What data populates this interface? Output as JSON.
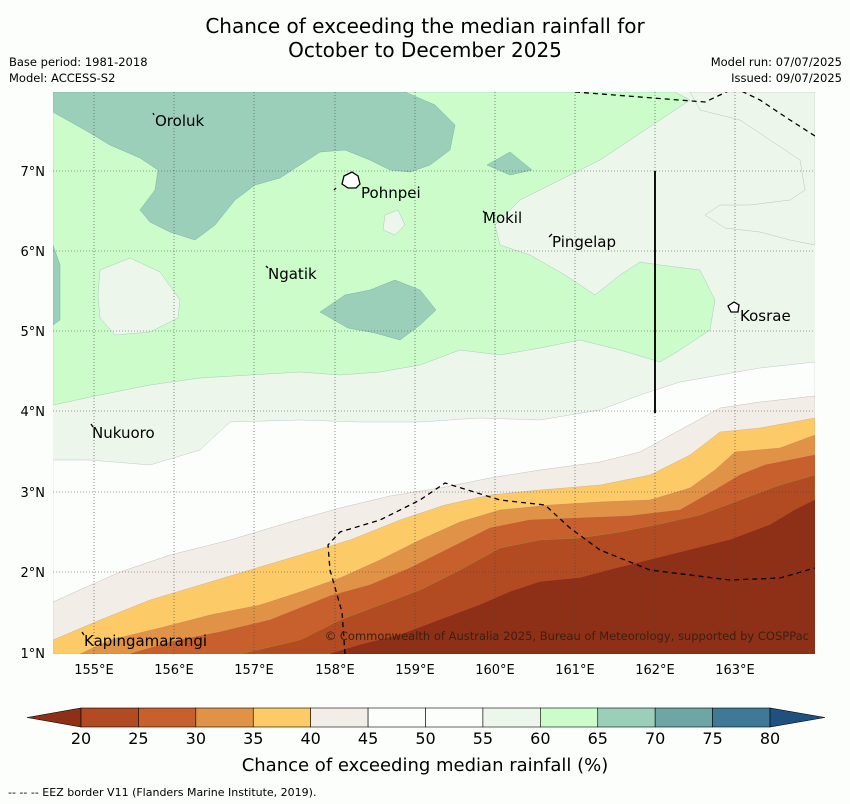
{
  "title_line1": "Chance of exceeding the median rainfall for",
  "title_line2": "October to December 2025",
  "meta_left": [
    "Base period: 1981-2018",
    "Model: ACCESS-S2"
  ],
  "meta_right": [
    "Model run: 07/07/2025",
    "Issued: 09/07/2025"
  ],
  "lat_labels": [
    "7°N",
    "6°N",
    "5°N",
    "4°N",
    "3°N",
    "2°N",
    "1°N"
  ],
  "lon_labels": [
    "155°E",
    "156°E",
    "157°E",
    "158°E",
    "159°E",
    "160°E",
    "161°E",
    "162°E",
    "163°E"
  ],
  "places": [
    "Oroluk",
    "Pohnpei",
    "Mokil",
    "Pingelap",
    "Ngatik",
    "Kosrae",
    "Nukuoro",
    "Kapingamarangi"
  ],
  "copyright": "© Commonwealth of Australia 2025, Bureau of Meteorology, supported by COSPPac",
  "colorbar": {
    "ticks": [
      "20",
      "25",
      "30",
      "35",
      "40",
      "45",
      "50",
      "55",
      "60",
      "65",
      "70",
      "75",
      "80"
    ],
    "colors": [
      "#b24a22",
      "#c8602e",
      "#e09346",
      "#fccb68",
      "#f3ede8",
      "#fcfefc",
      "#fcfefc",
      "#edf6ea",
      "#cbfcca",
      "#9ccfba",
      "#6ea6a6",
      "#3e7a98"
    ],
    "under_color": "#8e3018",
    "over_color": "#1e5080",
    "label": "Chance of exceeding median rainfall (%)"
  },
  "footer": "--  --  -- EEZ border V11 (Flanders Marine Institute, 2019)."
}
